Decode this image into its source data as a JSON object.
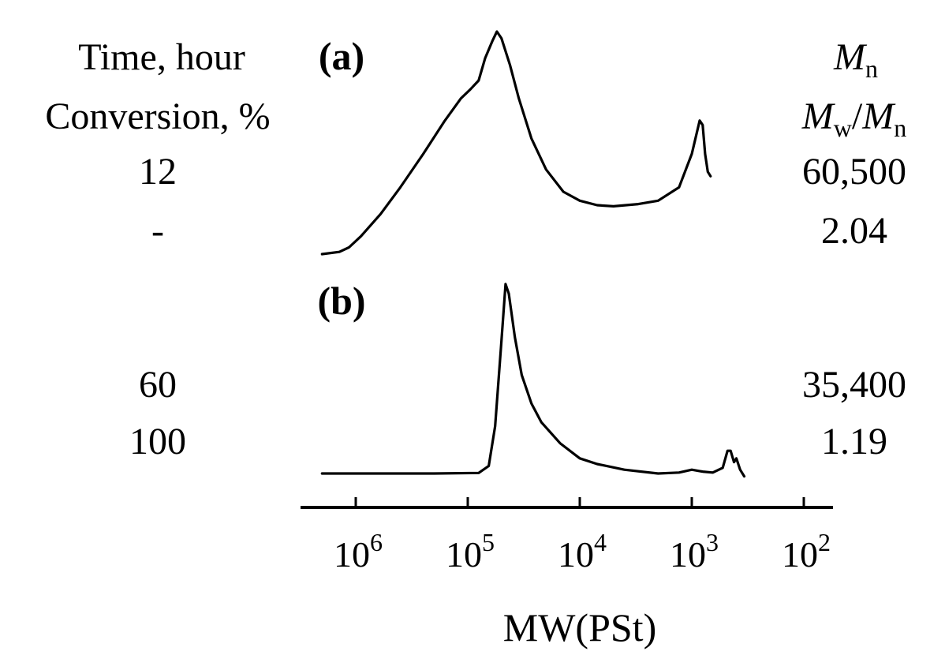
{
  "chart_data": {
    "type": "line",
    "xlabel": "MW(PSt)",
    "x_scale": "log",
    "x_reversed": true,
    "xlim": [
      2000000,
      80
    ],
    "xticks": [
      1000000,
      100000,
      10000,
      1000,
      100
    ],
    "xtick_labels": [
      {
        "base": "10",
        "exp": "6"
      },
      {
        "base": "10",
        "exp": "5"
      },
      {
        "base": "10",
        "exp": "4"
      },
      {
        "base": "10",
        "exp": "3"
      },
      {
        "base": "10",
        "exp": "2"
      }
    ],
    "left_header": [
      "Time, hour",
      "Conversion, %"
    ],
    "right_header": [
      {
        "parts": [
          {
            "t": "M",
            "i": true
          },
          {
            "t": "n",
            "sub": true
          }
        ]
      },
      {
        "parts": [
          {
            "t": "M",
            "i": true
          },
          {
            "t": "w",
            "sub": true
          },
          {
            "t": "/"
          },
          {
            "t": "M",
            "i": true
          },
          {
            "t": "n",
            "sub": true
          }
        ]
      }
    ],
    "series": [
      {
        "name": "(a)",
        "time_hour": "12",
        "conversion_pct": "-",
        "Mn": "60,500",
        "Mw_Mn": "2.04",
        "points": [
          [
            2000000,
            0.0
          ],
          [
            1400000,
            0.01
          ],
          [
            1150000,
            0.03
          ],
          [
            900000,
            0.08
          ],
          [
            600000,
            0.18
          ],
          [
            400000,
            0.3
          ],
          [
            250000,
            0.45
          ],
          [
            160000,
            0.6
          ],
          [
            115000,
            0.7
          ],
          [
            95000,
            0.74
          ],
          [
            80000,
            0.78
          ],
          [
            70000,
            0.88
          ],
          [
            60000,
            0.96
          ],
          [
            55000,
            1.0
          ],
          [
            50000,
            0.97
          ],
          [
            42000,
            0.85
          ],
          [
            35000,
            0.7
          ],
          [
            27000,
            0.52
          ],
          [
            20000,
            0.38
          ],
          [
            14000,
            0.28
          ],
          [
            10000,
            0.24
          ],
          [
            7000,
            0.22
          ],
          [
            5000,
            0.215
          ],
          [
            3000,
            0.225
          ],
          [
            2000,
            0.24
          ],
          [
            1300,
            0.3
          ],
          [
            1000,
            0.45
          ],
          [
            850,
            0.6
          ],
          [
            800,
            0.58
          ],
          [
            760,
            0.45
          ],
          [
            720,
            0.37
          ],
          [
            680,
            0.35
          ]
        ]
      },
      {
        "name": "(b)",
        "time_hour": "60",
        "conversion_pct": "100",
        "Mn": "35,400",
        "Mw_Mn": "1.19",
        "points": [
          [
            2000000,
            0.0
          ],
          [
            200000,
            0.0
          ],
          [
            80000,
            0.003
          ],
          [
            65000,
            0.04
          ],
          [
            57000,
            0.25
          ],
          [
            50000,
            0.7
          ],
          [
            46000,
            1.0
          ],
          [
            43000,
            0.95
          ],
          [
            38000,
            0.72
          ],
          [
            33000,
            0.52
          ],
          [
            27000,
            0.37
          ],
          [
            22000,
            0.27
          ],
          [
            15000,
            0.16
          ],
          [
            10000,
            0.08
          ],
          [
            7000,
            0.05
          ],
          [
            4000,
            0.02
          ],
          [
            2000,
            0.0
          ],
          [
            1300,
            0.005
          ],
          [
            1000,
            0.02
          ],
          [
            800,
            0.01
          ],
          [
            650,
            0.005
          ],
          [
            530,
            0.03
          ],
          [
            480,
            0.12
          ],
          [
            450,
            0.12
          ],
          [
            420,
            0.06
          ],
          [
            400,
            0.08
          ],
          [
            370,
            0.02
          ],
          [
            340,
            -0.015
          ]
        ]
      }
    ]
  }
}
